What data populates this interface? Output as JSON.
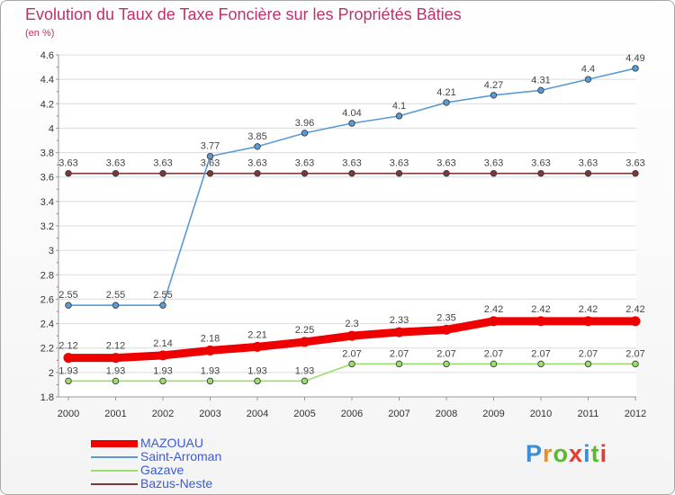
{
  "page": {
    "title": "Evolution du Taux de Taxe Foncière sur les Propriétés Bâties",
    "unit": "(en %)"
  },
  "logo": {
    "text": "Proxiti",
    "colors": [
      "#3a8fd8",
      "#f28c1c",
      "#5cb82e",
      "#e63b2e",
      "#3a8fd8",
      "#5cb82e",
      "#e63b2e"
    ]
  },
  "chart_data": {
    "type": "line",
    "title": "Evolution du Taux de Taxe Foncière sur les Propriétés Bâties",
    "ylabel": "(en %)",
    "xlabel": "",
    "ylim": [
      1.8,
      4.6
    ],
    "yticks": [
      "1.8",
      "2",
      "2.2",
      "2.4",
      "2.6",
      "2.8",
      "3",
      "3.2",
      "3.4",
      "3.6",
      "3.8",
      "4",
      "4.2",
      "4.4",
      "4.6"
    ],
    "x": [
      "2000",
      "2001",
      "2002",
      "2003",
      "2004",
      "2005",
      "2006",
      "2007",
      "2008",
      "2009",
      "2010",
      "2011",
      "2012"
    ],
    "grid": true,
    "legend_position": "bottom-left",
    "series": [
      {
        "name": "MAZOUAU",
        "color": "#ee0000",
        "bold": true,
        "values": [
          2.12,
          2.12,
          2.14,
          2.18,
          2.21,
          2.25,
          2.3,
          2.33,
          2.35,
          2.42,
          2.42,
          2.42,
          2.42
        ],
        "labels": [
          "2.12",
          "2.12",
          "2.14",
          "2.18",
          "2.21",
          "2.25",
          "2.3",
          "2.33",
          "2.35",
          "2.42",
          "2.42",
          "2.42",
          "2.42"
        ]
      },
      {
        "name": "Saint-Arroman",
        "color": "#5b9bd5",
        "bold": false,
        "values": [
          2.55,
          2.55,
          2.55,
          3.77,
          3.85,
          3.96,
          4.04,
          4.1,
          4.21,
          4.27,
          4.31,
          4.4,
          4.49
        ],
        "labels": [
          "2.55",
          "2.55",
          "2.55",
          "3.77",
          "3.85",
          "3.96",
          "4.04",
          "4.1",
          "4.21",
          "4.27",
          "4.31",
          "4.4",
          "4.49"
        ]
      },
      {
        "name": "Gazave",
        "color": "#9bde6e",
        "bold": false,
        "values": [
          1.93,
          1.93,
          1.93,
          1.93,
          1.93,
          1.93,
          2.07,
          2.07,
          2.07,
          2.07,
          2.07,
          2.07,
          2.07
        ],
        "labels": [
          "1.93",
          "1.93",
          "1.93",
          "1.93",
          "1.93",
          "1.93",
          "2.07",
          "2.07",
          "2.07",
          "2.07",
          "2.07",
          "2.07",
          "2.07"
        ]
      },
      {
        "name": "Bazus-Neste",
        "color": "#7a3a3a",
        "bold": false,
        "values": [
          3.63,
          3.63,
          3.63,
          3.63,
          3.63,
          3.63,
          3.63,
          3.63,
          3.63,
          3.63,
          3.63,
          3.63,
          3.63
        ],
        "labels": [
          "3.63",
          "3.63",
          "3.63",
          "3.63",
          "3.63",
          "3.63",
          "3.63",
          "3.63",
          "3.63",
          "3.63",
          "3.63",
          "3.63",
          "3.63"
        ]
      }
    ]
  }
}
